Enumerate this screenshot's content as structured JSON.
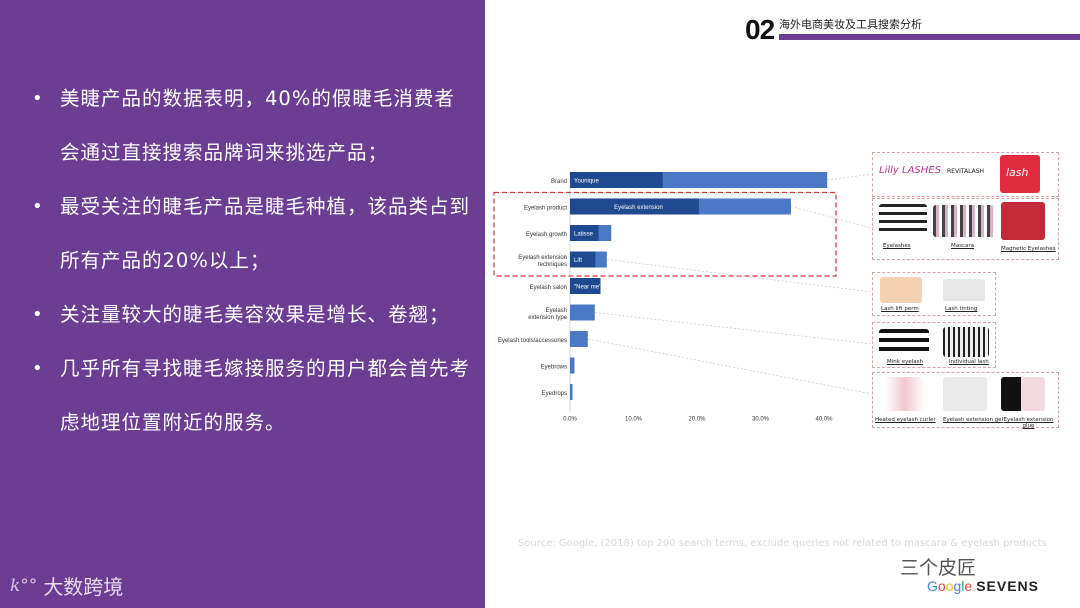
{
  "bullets": [
    "美睫产品的数据表明，40%的假睫毛消费者会通过直接搜索品牌词来挑选产品；",
    "最受关注的睫毛产品是睫毛种植，该品类占到所有产品的20%以上；",
    "关注量较大的睫毛美容效果是增长、卷翘；",
    "几乎所有寻找睫毛嫁接服务的用户都会首先考虑地理位置附近的服务。"
  ],
  "brand": {
    "logo": "k°°",
    "name": "大数跨境"
  },
  "header": {
    "number": "02",
    "title": "海外电商美妆及工具搜索分析"
  },
  "colors": {
    "purple": "#6b3d93",
    "bar_light": "#4b79c5",
    "bar_dark": "#1f4a8f",
    "dashed_red": "#e03232"
  },
  "chart_data": {
    "type": "bar",
    "orientation": "horizontal",
    "categories": [
      "Brand",
      "Eyelash product",
      "Eyelash growth",
      "Eyelash extension techniques",
      "Eyelash salon",
      "Eyelash extension type",
      "Eyelash tools/accessories",
      "Eyebrows",
      "Eyedrops"
    ],
    "series": [
      {
        "values": [
          40.5,
          34.8,
          6.5,
          5.8,
          4.8,
          3.9,
          2.8,
          0.7,
          0.4
        ]
      }
    ],
    "inner_labels": [
      {
        "category": "Brand",
        "text": "Younique",
        "value": 14.6
      },
      {
        "category": "Eyelash product",
        "text": "Eyelash extension",
        "value": 20.3
      },
      {
        "category": "Eyelash growth",
        "text": "Latisse",
        "value": 4.5
      },
      {
        "category": "Eyelash extension techniques",
        "text": "Lift",
        "value": 4.0
      },
      {
        "category": "Eyelash salon",
        "text": "\"Near me\"",
        "value": 4.8
      }
    ],
    "xlim": [
      0,
      40
    ],
    "xticks": [
      "0.0%",
      "10.0%",
      "20.0%",
      "30.0%",
      "40.0%"
    ],
    "title": "",
    "xlabel": "",
    "ylabel": ""
  },
  "thumbnails": {
    "brands": [
      "Lilly LASHES",
      "REVITALASH",
      "lash"
    ],
    "products": [
      "Eyelashes",
      "Mascara",
      "Magnetic Eyelashes"
    ],
    "growth": [
      "Lash lift perm",
      "Lash tinting"
    ],
    "types": [
      "Mink eyelash",
      "Individual lash"
    ],
    "tools": [
      "Heated eyelash curler",
      "Eyelash extension gel",
      "Eyelash extension glue"
    ]
  },
  "footer": {
    "source": "Source: Google, (2018) top 200 search terms,  exclude queries not related to mascara & eyelash products",
    "watermark": "三个皮匠",
    "google": [
      "G",
      "o",
      "o",
      "g",
      "l",
      "e"
    ],
    "sevens": "SEVENS"
  }
}
